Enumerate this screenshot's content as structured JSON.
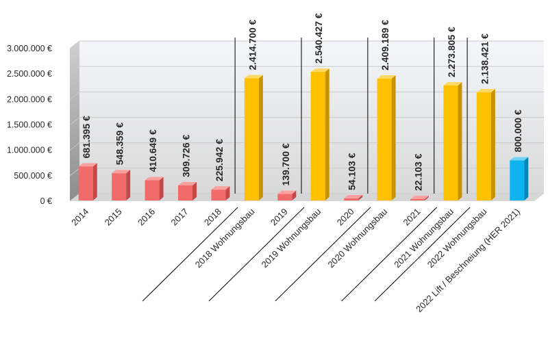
{
  "chart_data": {
    "type": "bar",
    "title": "",
    "xlabel": "",
    "ylabel": "",
    "ylim": [
      0,
      3000000
    ],
    "grid": true,
    "legend": "none",
    "y_ticks": [
      {
        "value": 0,
        "label": "0 €"
      },
      {
        "value": 500000,
        "label": "500.000 €"
      },
      {
        "value": 1000000,
        "label": "1.000.000 €"
      },
      {
        "value": 1500000,
        "label": "1.500.000 €"
      },
      {
        "value": 2000000,
        "label": "2.000.000 €"
      },
      {
        "value": 2500000,
        "label": "2.500.000 €"
      },
      {
        "value": 3000000,
        "label": "3.000.000 €"
      }
    ],
    "categories": [
      "2014",
      "2015",
      "2016",
      "2017",
      "2018",
      "2018 Wohnungsbau",
      "2019",
      "2019 Wohnungsbau",
      "2020",
      "2020 Wohnungsbau",
      "2021",
      "2021 Wohnungsbau",
      "2022 Wohnungsbau",
      "2022 Lift / Beschneiung (HER 2021)"
    ],
    "values": [
      681395,
      548359,
      410649,
      309726,
      225942,
      2414700,
      139700,
      2540427,
      54103,
      2409189,
      22103,
      2273805,
      2138421,
      800000
    ],
    "value_labels": [
      "681.395 €",
      "548.359 €",
      "410.649 €",
      "309.726 €",
      "225.942 €",
      "2.414.700 €",
      "139.700 €",
      "2.540.427 €",
      "54.103 €",
      "2.409.189 €",
      "22.103 €",
      "2.273.805 €",
      "2.138.421 €",
      "800.000 €"
    ],
    "bar_groups": [
      "base",
      "base",
      "base",
      "base",
      "base",
      "housing",
      "base",
      "housing",
      "base",
      "housing",
      "base",
      "housing",
      "housing",
      "lift"
    ],
    "colors": {
      "base": {
        "front": "#f26b6b",
        "side": "#c44848",
        "top": "#f9a0a0"
      },
      "housing": {
        "front": "#ffc000",
        "side": "#c79400",
        "top": "#ffd966"
      },
      "lift": {
        "front": "#0fb3f0",
        "side": "#0a86b5",
        "top": "#6fd2f7"
      }
    }
  }
}
